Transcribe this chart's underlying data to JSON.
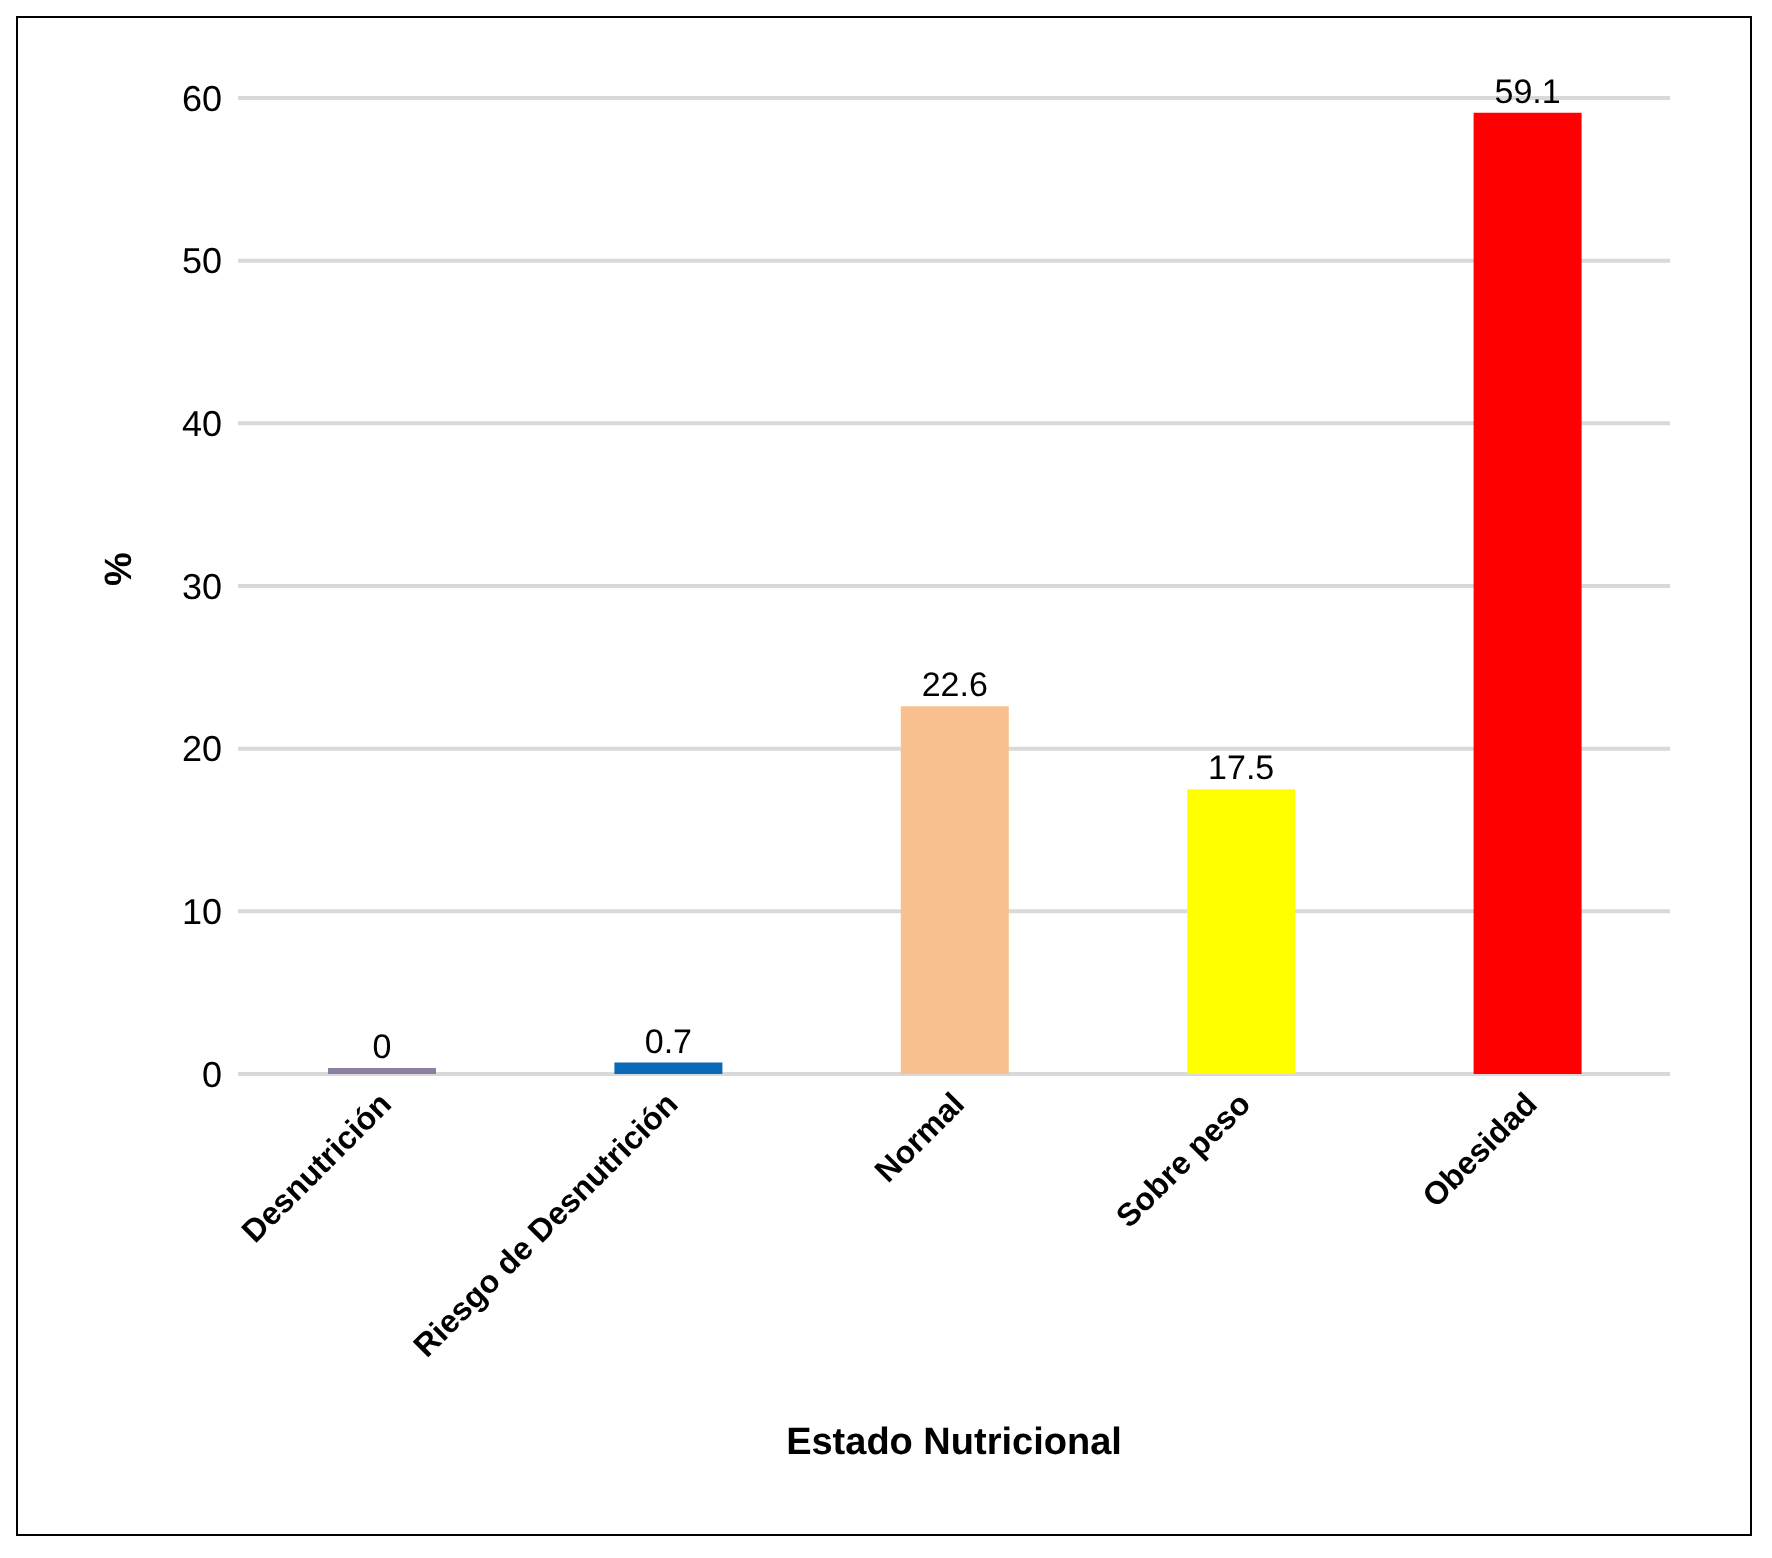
{
  "chart_data": {
    "type": "bar",
    "xlabel": "Estado Nutricional",
    "ylabel": "%",
    "categories": [
      "Desnutrición",
      "Riesgo de Desnutrición",
      "Normal",
      "Sobre peso",
      "Obesidad"
    ],
    "values": [
      0,
      0.7,
      22.6,
      17.5,
      59.1
    ],
    "colors": [
      "#8c7fa0",
      "#0a6ab8",
      "#f9c08f",
      "#ffff00",
      "#ff0000"
    ],
    "ylim": [
      0,
      60
    ],
    "yticks": [
      0,
      10,
      20,
      30,
      40,
      50,
      60
    ],
    "grid": "y",
    "data_labels": true
  }
}
